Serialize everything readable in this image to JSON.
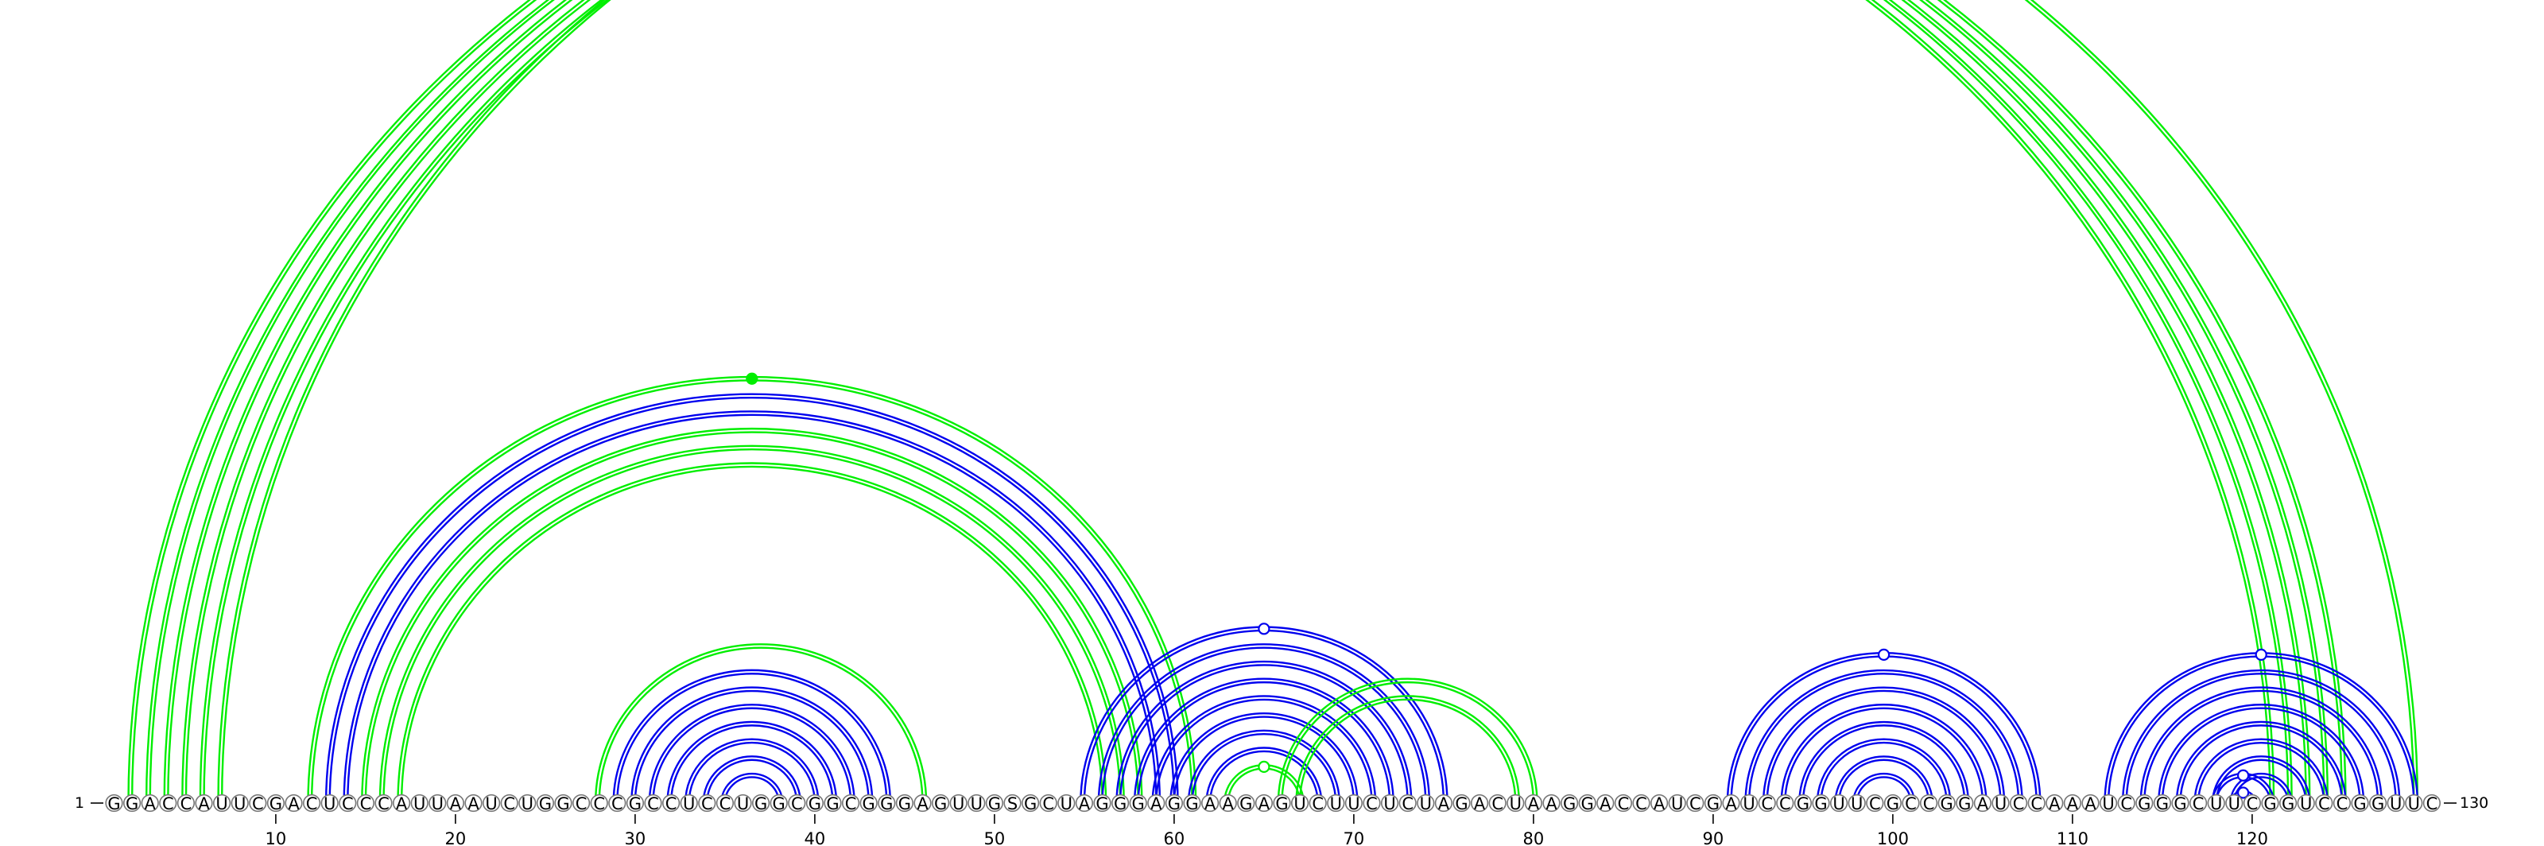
{
  "sequence": "GGACCAUUCGACUCCCAUUAAUCUGGCCCGCCUCCUGGCGGCGGGAGUUGSGCUAGGGAGGAAGAGUCUUCUCUAGACUAAGGACCAUCGAUCCGGUUCGCCGGAUCCAAAUCGGGCUUCGGUCCGGUUC",
  "start_label": "1",
  "end_label": "130",
  "ticks": [
    {
      "position": 10,
      "label": "10"
    },
    {
      "position": 20,
      "label": "20"
    },
    {
      "position": 30,
      "label": "30"
    },
    {
      "position": 40,
      "label": "40"
    },
    {
      "position": 50,
      "label": "50"
    },
    {
      "position": 60,
      "label": "60"
    },
    {
      "position": 70,
      "label": "70"
    },
    {
      "position": 80,
      "label": "80"
    },
    {
      "position": 90,
      "label": "90"
    },
    {
      "position": 100,
      "label": "100"
    },
    {
      "position": 110,
      "label": "110"
    },
    {
      "position": 120,
      "label": "120"
    },
    {
      "position": 130,
      "label": "130"
    }
  ],
  "colors": {
    "green": "#00ee00",
    "blue": "#0000ee"
  },
  "stems": [
    {
      "color": "green",
      "pairs": [
        [
          2,
          121
        ],
        [
          3,
          122
        ],
        [
          4,
          123
        ],
        [
          5,
          124
        ],
        [
          6,
          125
        ]
      ]
    },
    {
      "color": "green",
      "pairs": [
        [
          7,
          129
        ]
      ],
      "marker": "open"
    },
    {
      "color": "green",
      "pairs": [
        [
          12,
          61
        ]
      ],
      "marker": "filled"
    },
    {
      "color": "blue",
      "pairs": [
        [
          13,
          60
        ],
        [
          14,
          59
        ]
      ]
    },
    {
      "color": "green",
      "pairs": [
        [
          15,
          58
        ],
        [
          16,
          57
        ],
        [
          17,
          56
        ]
      ]
    },
    {
      "color": "green",
      "pairs": [
        [
          28,
          46
        ]
      ]
    },
    {
      "color": "blue",
      "pairs": [
        [
          29,
          44
        ],
        [
          30,
          43
        ],
        [
          31,
          42
        ],
        [
          32,
          41
        ],
        [
          33,
          40
        ],
        [
          34,
          39
        ],
        [
          35,
          38
        ]
      ]
    },
    {
      "color": "blue",
      "pairs": [
        [
          55,
          75
        ],
        [
          56,
          74
        ],
        [
          57,
          73
        ],
        [
          58,
          72
        ],
        [
          59,
          71
        ],
        [
          60,
          70
        ],
        [
          61,
          69
        ],
        [
          62,
          68
        ]
      ],
      "marker": "open"
    },
    {
      "color": "green",
      "pairs": [
        [
          63,
          67
        ]
      ],
      "marker": "open"
    },
    {
      "color": "green",
      "pairs": [
        [
          66,
          80
        ],
        [
          67,
          79
        ]
      ]
    },
    {
      "color": "blue",
      "pairs": [
        [
          91,
          108
        ],
        [
          92,
          107
        ],
        [
          93,
          106
        ],
        [
          94,
          105
        ],
        [
          95,
          104
        ],
        [
          96,
          103
        ],
        [
          97,
          102
        ],
        [
          98,
          101
        ]
      ],
      "marker": "open"
    },
    {
      "color": "blue",
      "pairs": [
        [
          112,
          129
        ],
        [
          113,
          128
        ],
        [
          114,
          127
        ],
        [
          115,
          126
        ],
        [
          116,
          125
        ],
        [
          117,
          124
        ],
        [
          118,
          123
        ],
        [
          119,
          122
        ]
      ],
      "marker": "open"
    },
    {
      "color": "blue",
      "pairs": [
        [
          118,
          121
        ]
      ],
      "marker": "open"
    },
    {
      "color": "blue",
      "pairs": [
        [
          119,
          120
        ]
      ],
      "marker": "open"
    }
  ]
}
